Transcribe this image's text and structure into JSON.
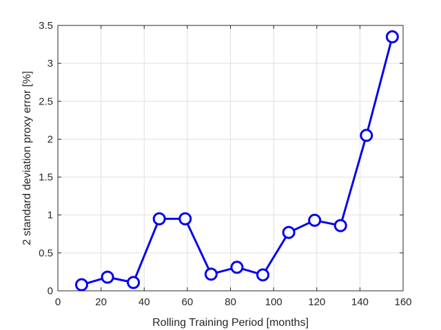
{
  "chart_data": {
    "type": "line",
    "xlabel": "Rolling Training Period [months]",
    "ylabel": "2 standard deviation proxy error [%]",
    "xlim": [
      0,
      160
    ],
    "ylim": [
      0,
      3.5
    ],
    "x_ticks": [
      0,
      20,
      40,
      60,
      80,
      100,
      120,
      140,
      160
    ],
    "x_tick_labels": [
      "0",
      "20",
      "40",
      "60",
      "80",
      "100",
      "120",
      "140",
      "160"
    ],
    "y_ticks": [
      0,
      0.5,
      1,
      1.5,
      2,
      2.5,
      3,
      3.5
    ],
    "y_tick_labels": [
      "0",
      "0.5",
      "1",
      "1.5",
      "2",
      "2.5",
      "3",
      "3.5"
    ],
    "grid": true,
    "series": [
      {
        "color": "#0000ee",
        "marker": "circle",
        "x": [
          11,
          23,
          35,
          47,
          59,
          71,
          83,
          95,
          107,
          119,
          131,
          143,
          155
        ],
        "y": [
          0.08,
          0.18,
          0.11,
          0.95,
          0.95,
          0.22,
          0.31,
          0.21,
          0.77,
          0.93,
          0.86,
          2.05,
          3.35
        ]
      }
    ]
  }
}
